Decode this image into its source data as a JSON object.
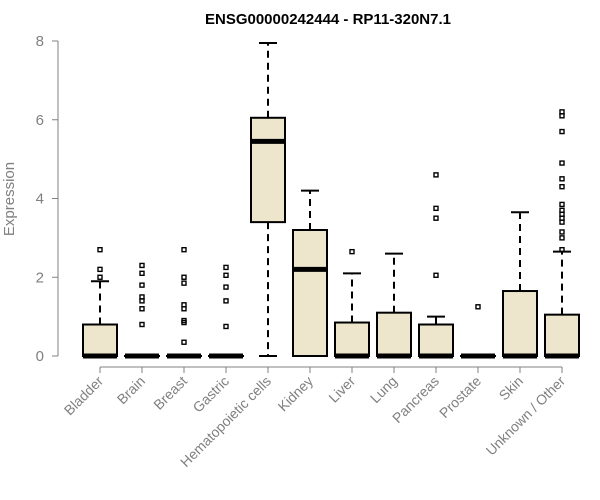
{
  "chart_data": {
    "type": "box",
    "title": "ENSG00000242444 - RP11-320N7.1",
    "xlabel": "",
    "ylabel": "Expression",
    "ylim": [
      0,
      8
    ],
    "yticks": [
      0,
      2,
      4,
      6,
      8
    ],
    "grid": false,
    "box_fill": "#ede6cc",
    "categories": [
      "Bladder",
      "Brain",
      "Breast",
      "Gastric",
      "Hematopoietic cells",
      "Kidney",
      "Liver",
      "Lung",
      "Pancreas",
      "Prostate",
      "Skin",
      "Unknown / Other"
    ],
    "boxes": [
      {
        "category": "Bladder",
        "min": 0,
        "q1": 0,
        "median": 0,
        "q3": 0.8,
        "max": 1.9,
        "outliers": [
          2.0,
          2.2,
          2.7
        ]
      },
      {
        "category": "Brain",
        "min": 0,
        "q1": 0,
        "median": 0,
        "q3": 0,
        "max": 0,
        "outliers": [
          0.8,
          1.2,
          1.4,
          1.5,
          1.8,
          2.1,
          2.3
        ]
      },
      {
        "category": "Breast",
        "min": 0,
        "q1": 0,
        "median": 0,
        "q3": 0,
        "max": 0,
        "outliers": [
          0.35,
          0.85,
          0.9,
          1.2,
          1.3,
          1.85,
          2.0,
          2.7
        ]
      },
      {
        "category": "Gastric",
        "min": 0,
        "q1": 0,
        "median": 0,
        "q3": 0,
        "max": 0,
        "outliers": [
          0.75,
          1.4,
          1.75,
          2.05,
          2.25
        ]
      },
      {
        "category": "Hematopoietic cells",
        "min": 0,
        "q1": 3.4,
        "median": 5.45,
        "q3": 6.05,
        "max": 7.95,
        "outliers": []
      },
      {
        "category": "Kidney",
        "min": 0,
        "q1": 0,
        "median": 2.2,
        "q3": 3.2,
        "max": 4.2,
        "outliers": []
      },
      {
        "category": "Liver",
        "min": 0,
        "q1": 0,
        "median": 0,
        "q3": 0.85,
        "max": 2.1,
        "outliers": [
          2.65
        ]
      },
      {
        "category": "Lung",
        "min": 0,
        "q1": 0,
        "median": 0,
        "q3": 1.1,
        "max": 2.6,
        "outliers": []
      },
      {
        "category": "Pancreas",
        "min": 0,
        "q1": 0,
        "median": 0,
        "q3": 0.8,
        "max": 1.0,
        "outliers": [
          2.05,
          3.5,
          3.75,
          4.6
        ]
      },
      {
        "category": "Prostate",
        "min": 0,
        "q1": 0,
        "median": 0,
        "q3": 0,
        "max": 0,
        "outliers": [
          1.25
        ]
      },
      {
        "category": "Skin",
        "min": 0,
        "q1": 0,
        "median": 0,
        "q3": 1.65,
        "max": 3.65,
        "outliers": []
      },
      {
        "category": "Unknown / Other",
        "min": 0,
        "q1": 0,
        "median": 0,
        "q3": 1.05,
        "max": 2.65,
        "outliers": [
          2.7,
          3.0,
          3.15,
          3.4,
          3.5,
          3.6,
          3.7,
          3.85,
          4.3,
          4.5,
          4.9,
          5.7,
          6.1,
          6.2
        ]
      }
    ]
  }
}
